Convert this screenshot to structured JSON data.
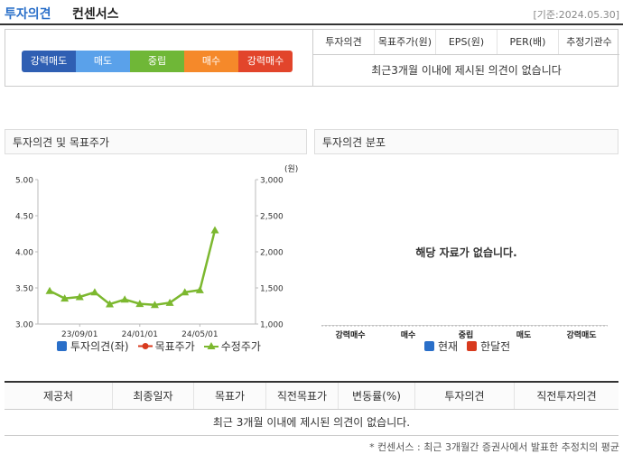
{
  "header": {
    "title_main": "투자의견",
    "title_sub": "컨센서스",
    "base_date": "[기준:2024.05.30]"
  },
  "opinion_scale": [
    {
      "label": "강력매도",
      "color": "#2f5fb3"
    },
    {
      "label": "매도",
      "color": "#5aa1ea"
    },
    {
      "label": "중립",
      "color": "#6fb737"
    },
    {
      "label": "매수",
      "color": "#f5892a"
    },
    {
      "label": "강력매수",
      "color": "#e2452b"
    }
  ],
  "summary": {
    "columns": [
      "투자의견",
      "목표주가(원)",
      "EPS(원)",
      "PER(배)",
      "추정기관수"
    ],
    "empty_message": "최근3개월 이내에 제시된 의견이 없습니다"
  },
  "left_panel": {
    "title": "투자의견 및 목표주가",
    "legend": [
      {
        "label": "투자의견(좌)",
        "color": "#2a6fc9",
        "icon": "square-icon"
      },
      {
        "label": "목표주가",
        "color": "#d83a1e",
        "icon": "dot-line-icon"
      },
      {
        "label": "수정주가",
        "color": "#7cb82f",
        "icon": "triangle-line-icon"
      }
    ]
  },
  "right_panel": {
    "title": "투자의견 분포",
    "empty_message": "해당 자료가 없습니다.",
    "categories": [
      "강력매수",
      "매수",
      "중립",
      "매도",
      "강력매도"
    ],
    "legend": [
      {
        "label": "현재",
        "color": "#2a6fc9"
      },
      {
        "label": "한달전",
        "color": "#d83a1e"
      }
    ]
  },
  "chart_data": {
    "type": "line",
    "title": "투자의견 및 목표주가",
    "y_left": {
      "ticks": [
        "5.00",
        "4.50",
        "4.00",
        "3.50",
        "3.00"
      ],
      "range": [
        3.0,
        5.0
      ]
    },
    "y_right": {
      "ticks": [
        "3,000",
        "2,500",
        "2,000",
        "1,500",
        "1,000"
      ],
      "range": [
        1000,
        3000
      ],
      "unit": "(원)"
    },
    "x_ticks": [
      "23/09/01",
      "24/01/01",
      "24/05/01"
    ],
    "series": [
      {
        "name": "수정주가",
        "axis": "right",
        "color": "#7cb82f",
        "values": [
          1460,
          1355,
          1375,
          1440,
          1275,
          1340,
          1280,
          1265,
          1295,
          1440,
          1470,
          2300
        ]
      }
    ]
  },
  "bottom_table": {
    "columns": [
      "제공처",
      "최종일자",
      "목표가",
      "직전목표가",
      "변동률(%)",
      "투자의견",
      "직전투자의견"
    ],
    "empty_message": "최근 3개월 이내에 제시된 의견이 없습니다."
  },
  "footnote": "* 컨센서스 : 최근 3개월간 증권사에서 발표한 추정치의 평균"
}
